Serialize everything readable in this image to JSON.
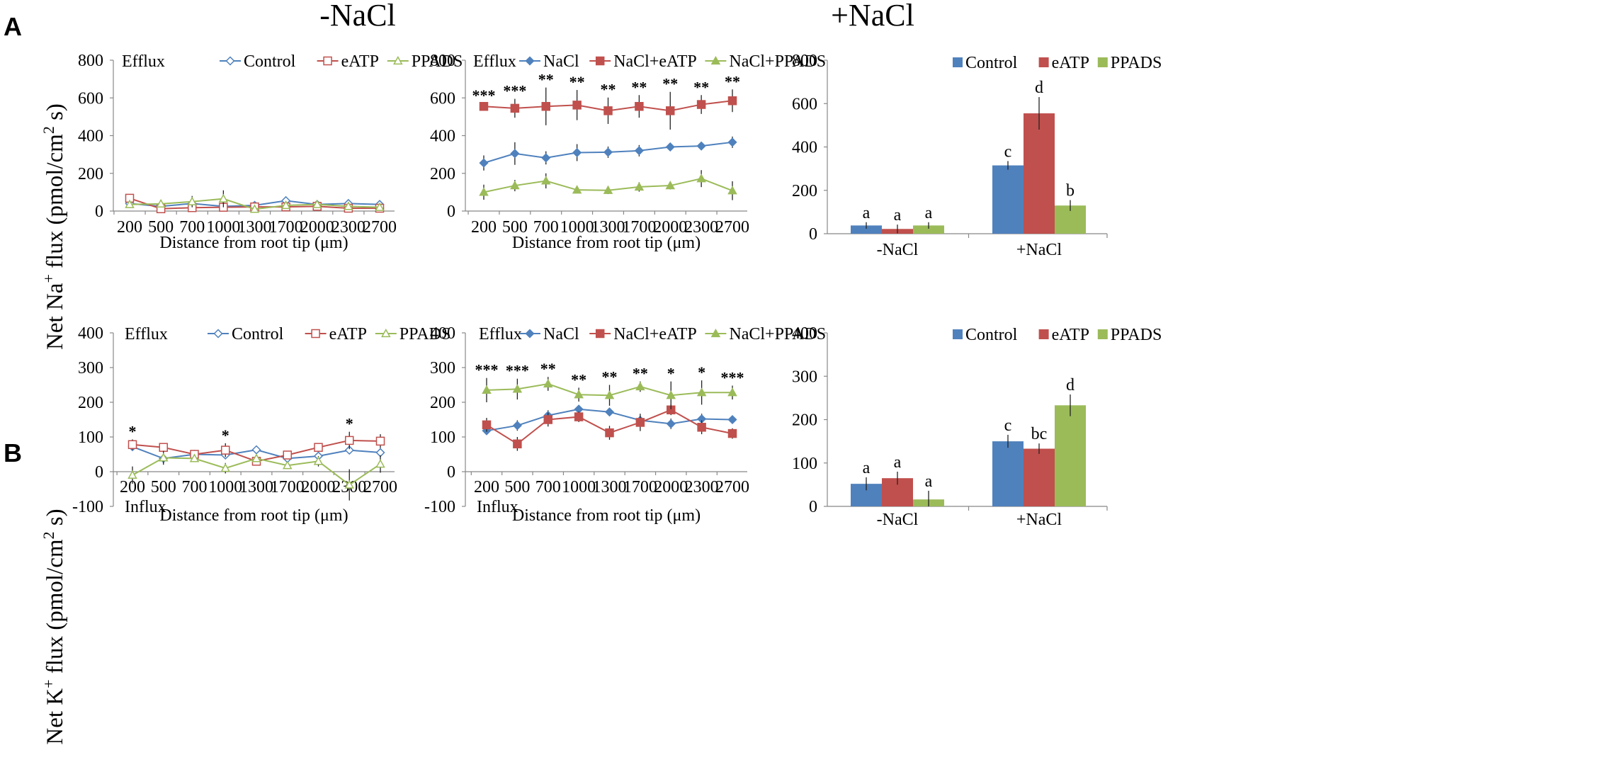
{
  "figure": {
    "panel_labels": [
      "A",
      "B"
    ],
    "column_titles": [
      "-NaCl",
      "+NaCl"
    ],
    "ylabels": {
      "na": {
        "prefix": "Net Na",
        "sup1": "+",
        "mid": " flux (pmol/cm",
        "sup2": "2",
        "suffix": " s)"
      },
      "k": {
        "prefix": "Net K",
        "sup1": "+",
        "mid": " flux (pmol/cm",
        "sup2": "2",
        "suffix": " s)"
      }
    }
  },
  "colors": {
    "blue": "#4f81bd",
    "red": "#c0504d",
    "green": "#9bbb59"
  },
  "chart_data": [
    {
      "id": "A1",
      "type": "line",
      "xlabel": "Distance from root tip (μm)",
      "ylabel": "",
      "categories": [
        "200",
        "500",
        "700",
        "1000",
        "1300",
        "1700",
        "2000",
        "2300",
        "2700"
      ],
      "ylim": [
        0,
        800
      ],
      "yticks": [
        0,
        200,
        400,
        600,
        800
      ],
      "annotations_top": "Efflux",
      "annotations_bottom": "",
      "star_marks": [],
      "series": [
        {
          "name": "Control",
          "color": "#4f81bd",
          "marker": "diamond-open",
          "values": [
            40,
            25,
            40,
            25,
            30,
            55,
            35,
            40,
            35
          ],
          "errors": [
            15,
            10,
            10,
            10,
            8,
            15,
            10,
            8,
            8
          ]
        },
        {
          "name": "eATP",
          "color": "#c0504d",
          "marker": "square-open",
          "values": [
            68,
            12,
            18,
            20,
            22,
            22,
            25,
            15,
            15
          ],
          "errors": [
            15,
            8,
            8,
            8,
            8,
            8,
            8,
            8,
            8
          ]
        },
        {
          "name": "PPADS",
          "color": "#9bbb59",
          "marker": "triangle-open",
          "values": [
            35,
            38,
            50,
            65,
            10,
            30,
            35,
            25,
            20
          ],
          "errors": [
            10,
            15,
            30,
            45,
            15,
            10,
            10,
            10,
            8
          ]
        }
      ]
    },
    {
      "id": "A2",
      "type": "line",
      "xlabel": "Distance from root tip (μm)",
      "ylabel": "",
      "categories": [
        "200",
        "500",
        "700",
        "1000",
        "1300",
        "1700",
        "2000",
        "2300",
        "2700"
      ],
      "ylim": [
        0,
        800
      ],
      "yticks": [
        0,
        200,
        400,
        600,
        800
      ],
      "annotations_top": "Efflux",
      "annotations_bottom": "",
      "star_marks": [
        "***",
        "***",
        "**",
        "**",
        "**",
        "**",
        "**",
        "**",
        "**"
      ],
      "series": [
        {
          "name": "NaCl",
          "color": "#4f81bd",
          "marker": "diamond",
          "values": [
            255,
            305,
            282,
            310,
            312,
            320,
            340,
            345,
            365
          ],
          "errors": [
            40,
            60,
            35,
            45,
            30,
            30,
            15,
            15,
            30
          ]
        },
        {
          "name": "NaCl+eATP",
          "color": "#c0504d",
          "marker": "square",
          "values": [
            555,
            545,
            555,
            562,
            532,
            555,
            532,
            565,
            585
          ],
          "errors": [
            15,
            50,
            100,
            80,
            70,
            60,
            100,
            50,
            60
          ]
        },
        {
          "name": "NaCl+PPADS",
          "color": "#9bbb59",
          "marker": "triangle",
          "values": [
            100,
            135,
            160,
            112,
            110,
            128,
            135,
            172,
            108
          ],
          "errors": [
            40,
            30,
            40,
            15,
            20,
            25,
            20,
            45,
            50
          ]
        }
      ]
    },
    {
      "id": "A3",
      "type": "bar",
      "categories": [
        "-NaCl",
        "+NaCl"
      ],
      "ylim": [
        0,
        800
      ],
      "yticks": [
        0,
        200,
        400,
        600,
        800
      ],
      "series": [
        {
          "name": "Control",
          "color": "#4f81bd",
          "values": [
            38,
            315
          ],
          "errors": [
            15,
            20
          ],
          "letters": [
            "a",
            "c"
          ]
        },
        {
          "name": "eATP",
          "color": "#c0504d",
          "values": [
            22,
            555
          ],
          "errors": [
            20,
            75
          ],
          "letters": [
            "a",
            "d"
          ]
        },
        {
          "name": "PPADS",
          "color": "#9bbb59",
          "values": [
            38,
            130
          ],
          "errors": [
            15,
            25
          ],
          "letters": [
            "a",
            "b"
          ]
        }
      ]
    },
    {
      "id": "B1",
      "type": "line",
      "xlabel": "Distance from root tip (μm)",
      "ylabel": "",
      "categories": [
        "200",
        "500",
        "700",
        "1000",
        "1300",
        "1700",
        "2000",
        "2300",
        "2700"
      ],
      "ylim": [
        -100,
        400
      ],
      "yticks": [
        -100,
        0,
        100,
        200,
        300,
        400
      ],
      "annotations_top": "Efflux",
      "annotations_bottom": "Influx",
      "star_marks": [
        "*",
        "",
        "",
        "*",
        "",
        "",
        "",
        "*",
        ""
      ],
      "series": [
        {
          "name": "Control",
          "color": "#4f81bd",
          "marker": "diamond-open",
          "values": [
            72,
            38,
            50,
            48,
            63,
            38,
            45,
            62,
            55
          ],
          "errors": [
            10,
            8,
            8,
            8,
            5,
            8,
            5,
            8,
            8
          ]
        },
        {
          "name": "eATP",
          "color": "#c0504d",
          "marker": "square-open",
          "values": [
            78,
            70,
            50,
            62,
            30,
            48,
            70,
            90,
            88
          ],
          "errors": [
            15,
            8,
            10,
            20,
            10,
            8,
            8,
            25,
            20
          ]
        },
        {
          "name": "PPADS",
          "color": "#9bbb59",
          "marker": "triangle-open",
          "values": [
            -10,
            40,
            38,
            10,
            38,
            18,
            30,
            -38,
            22
          ],
          "errors": [
            25,
            20,
            10,
            15,
            10,
            10,
            15,
            45,
            25
          ]
        }
      ]
    },
    {
      "id": "B2",
      "type": "line",
      "xlabel": "Distance from root tip (μm)",
      "ylabel": "",
      "categories": [
        "200",
        "500",
        "700",
        "1000",
        "1300",
        "1700",
        "2000",
        "2300",
        "2700"
      ],
      "ylim": [
        -100,
        400
      ],
      "yticks": [
        -100,
        0,
        100,
        200,
        300,
        400
      ],
      "annotations_top": "Efflux",
      "annotations_bottom": "Influx",
      "star_marks": [
        "***",
        "***",
        "**",
        "**",
        "**",
        "**",
        "*",
        "*",
        "***"
      ],
      "series": [
        {
          "name": "NaCl",
          "color": "#4f81bd",
          "marker": "diamond",
          "values": [
            118,
            133,
            162,
            180,
            172,
            148,
            138,
            152,
            150
          ],
          "errors": [
            10,
            15,
            15,
            10,
            8,
            10,
            15,
            15,
            10
          ]
        },
        {
          "name": "NaCl+eATP",
          "color": "#c0504d",
          "marker": "square",
          "values": [
            135,
            80,
            150,
            158,
            112,
            142,
            178,
            128,
            110
          ],
          "errors": [
            20,
            20,
            20,
            15,
            20,
            25,
            15,
            20,
            15
          ]
        },
        {
          "name": "NaCl+PPADS",
          "color": "#9bbb59",
          "marker": "triangle",
          "values": [
            235,
            238,
            253,
            222,
            220,
            245,
            220,
            228,
            228
          ],
          "errors": [
            35,
            30,
            20,
            20,
            30,
            15,
            40,
            35,
            20
          ]
        }
      ]
    },
    {
      "id": "B3",
      "type": "bar",
      "categories": [
        "-NaCl",
        "+NaCl"
      ],
      "ylim": [
        0,
        400
      ],
      "yticks": [
        0,
        100,
        200,
        300,
        400
      ],
      "series": [
        {
          "name": "Control",
          "color": "#4f81bd",
          "values": [
            52,
            150
          ],
          "errors": [
            15,
            15
          ],
          "letters": [
            "a",
            "c"
          ]
        },
        {
          "name": "eATP",
          "color": "#c0504d",
          "values": [
            65,
            133
          ],
          "errors": [
            15,
            12
          ],
          "letters": [
            "a",
            "bc"
          ]
        },
        {
          "name": "PPADS",
          "color": "#9bbb59",
          "values": [
            16,
            233
          ],
          "errors": [
            20,
            25
          ],
          "letters": [
            "a",
            "d"
          ]
        }
      ]
    }
  ]
}
